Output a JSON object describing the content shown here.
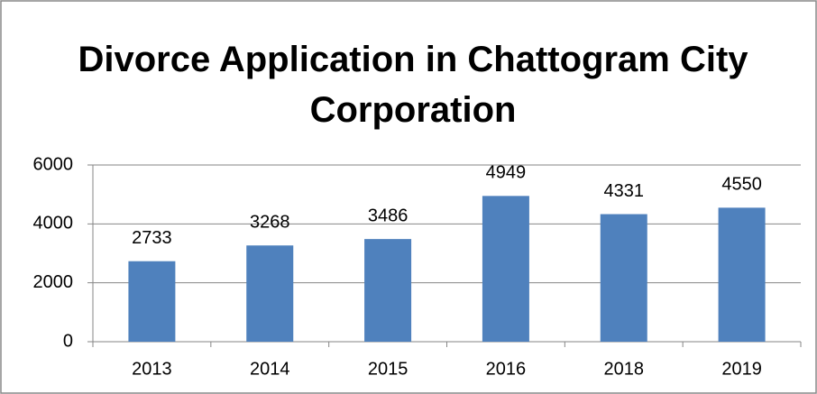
{
  "chart_data": {
    "type": "bar",
    "title": "Divorce Application in Chattogram City Corporation",
    "categories": [
      "2013",
      "2014",
      "2015",
      "2016",
      "2018",
      "2019"
    ],
    "values": [
      2733,
      3268,
      3486,
      4949,
      4331,
      4550
    ],
    "color": "#4f81bd",
    "ylim": [
      0,
      6000
    ],
    "yticks": [
      0,
      2000,
      4000,
      6000
    ],
    "grid": true
  }
}
